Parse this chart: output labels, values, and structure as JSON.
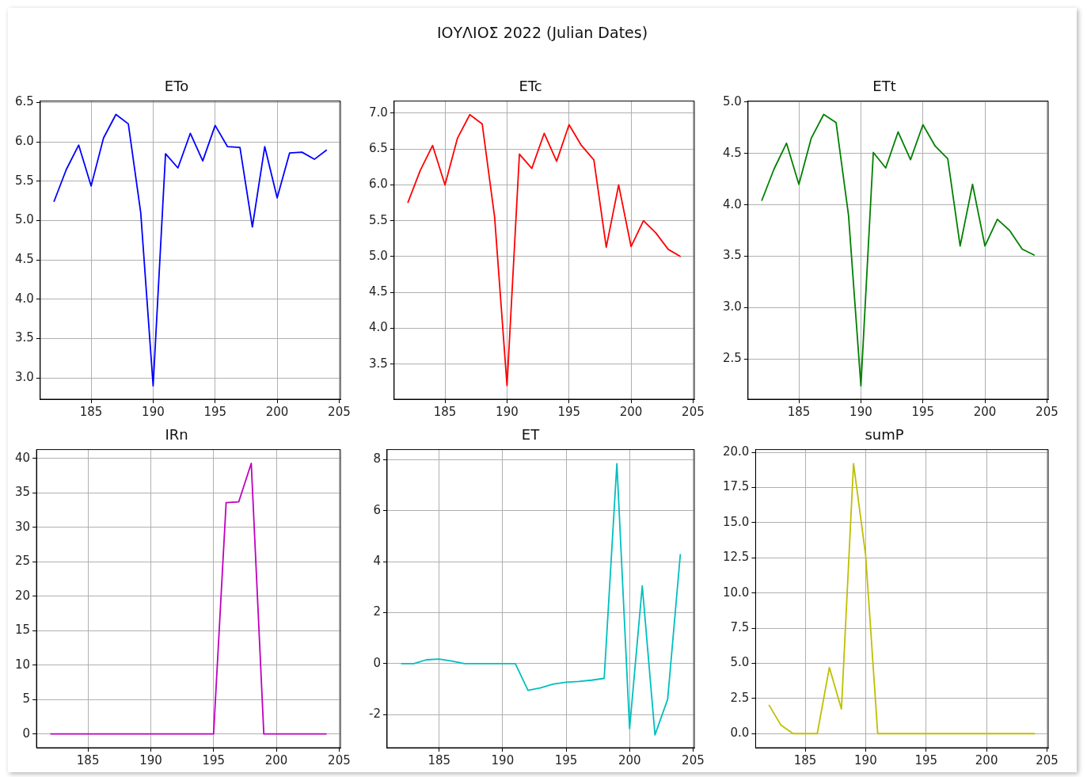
{
  "chart_data": [
    {
      "type": "other",
      "title": "ΙΟΥΛΙΟΣ 2022 (Julian Dates)"
    },
    {
      "type": "line",
      "title": "ETo",
      "color": "#0000ff",
      "grid": true,
      "x": [
        182,
        183,
        184,
        185,
        186,
        187,
        188,
        189,
        190,
        191,
        192,
        193,
        194,
        195,
        196,
        197,
        198,
        199,
        200,
        201,
        202,
        203,
        204
      ],
      "values": [
        5.24,
        5.65,
        5.96,
        5.44,
        6.05,
        6.35,
        6.23,
        5.1,
        2.9,
        5.85,
        5.67,
        6.11,
        5.76,
        6.21,
        5.94,
        5.93,
        4.92,
        5.94,
        5.29,
        5.86,
        5.87,
        5.78,
        5.9
      ],
      "xlim": [
        180.9,
        205.1
      ],
      "xticks": [
        185,
        190,
        195,
        200,
        205
      ],
      "ylim": [
        2.73,
        6.52
      ],
      "yticks": [
        {
          "value": 3,
          "label": "3.0"
        },
        3.5,
        {
          "value": 4,
          "label": "4.0"
        },
        4.5,
        {
          "value": 5,
          "label": "5.0"
        },
        5.5,
        {
          "value": 6,
          "label": "6.0"
        },
        6.5
      ]
    },
    {
      "type": "line",
      "title": "ETc",
      "color": "#ff0000",
      "grid": true,
      "x": [
        182,
        183,
        184,
        185,
        186,
        187,
        188,
        189,
        190,
        191,
        192,
        193,
        194,
        195,
        196,
        197,
        198,
        199,
        200,
        201,
        202,
        203,
        204
      ],
      "values": [
        5.75,
        6.2,
        6.55,
        6.0,
        6.65,
        6.98,
        6.85,
        5.55,
        3.2,
        6.43,
        6.23,
        6.72,
        6.33,
        6.84,
        6.55,
        6.35,
        5.13,
        6.0,
        5.14,
        5.5,
        5.33,
        5.1,
        5.0
      ],
      "xlim": [
        180.9,
        205.1
      ],
      "xticks": [
        185,
        190,
        195,
        200,
        205
      ],
      "ylim": [
        3.01,
        7.17
      ],
      "yticks": [
        3.5,
        {
          "value": 4,
          "label": "4.0"
        },
        4.5,
        {
          "value": 5,
          "label": "5.0"
        },
        5.5,
        {
          "value": 6,
          "label": "6.0"
        },
        6.5,
        {
          "value": 7,
          "label": "7.0"
        }
      ]
    },
    {
      "type": "line",
      "title": "ETt",
      "color": "#008000",
      "grid": true,
      "x": [
        182,
        183,
        184,
        185,
        186,
        187,
        188,
        189,
        190,
        191,
        192,
        193,
        194,
        195,
        196,
        197,
        198,
        199,
        200,
        201,
        202,
        203,
        204
      ],
      "values": [
        4.04,
        4.35,
        4.6,
        4.2,
        4.65,
        4.88,
        4.8,
        3.9,
        2.24,
        4.51,
        4.36,
        4.71,
        4.44,
        4.78,
        4.57,
        4.45,
        3.6,
        4.2,
        3.6,
        3.86,
        3.75,
        3.57,
        3.51
      ],
      "xlim": [
        180.9,
        205.1
      ],
      "xticks": [
        185,
        190,
        195,
        200,
        205
      ],
      "ylim": [
        2.11,
        5.01
      ],
      "yticks": [
        2.5,
        {
          "value": 3,
          "label": "3.0"
        },
        3.5,
        {
          "value": 4,
          "label": "4.0"
        },
        4.5,
        {
          "value": 5,
          "label": "5.0"
        }
      ]
    },
    {
      "type": "line",
      "title": "IRn",
      "color": "#bf00bf",
      "grid": true,
      "x": [
        182,
        183,
        184,
        185,
        186,
        187,
        188,
        189,
        190,
        191,
        192,
        193,
        194,
        195,
        196,
        197,
        198,
        199,
        200,
        201,
        202,
        203,
        204
      ],
      "values": [
        0,
        0,
        0,
        0,
        0,
        0,
        0,
        0,
        0,
        0,
        0,
        0,
        0,
        0,
        33.6,
        33.7,
        39.3,
        0,
        0,
        0,
        0,
        0,
        0
      ],
      "xlim": [
        180.9,
        205.1
      ],
      "xticks": [
        185,
        190,
        195,
        200,
        205
      ],
      "ylim": [
        -2,
        41.3
      ],
      "yticks": [
        0,
        5,
        10,
        15,
        20,
        25,
        30,
        35,
        40
      ]
    },
    {
      "type": "line",
      "title": "ET",
      "color": "#00bfbf",
      "grid": true,
      "x": [
        182,
        183,
        184,
        185,
        186,
        187,
        188,
        189,
        190,
        191,
        192,
        193,
        194,
        195,
        196,
        197,
        198,
        199,
        200,
        201,
        202,
        203,
        204
      ],
      "values": [
        0,
        0,
        0.15,
        0.18,
        0.1,
        0,
        0,
        0,
        0,
        0,
        -1.05,
        -0.95,
        -0.8,
        -0.73,
        -0.7,
        -0.65,
        -0.58,
        7.85,
        -2.55,
        3.05,
        -2.8,
        -1.4,
        4.3
      ],
      "xlim": [
        180.9,
        205.1
      ],
      "xticks": [
        185,
        190,
        195,
        200,
        205
      ],
      "ylim": [
        -3.3,
        8.4
      ],
      "yticks": [
        -2,
        0,
        2,
        4,
        6,
        8
      ]
    },
    {
      "type": "line",
      "title": "sumP",
      "color": "#bfbf00",
      "grid": true,
      "x": [
        182,
        183,
        184,
        185,
        186,
        187,
        188,
        189,
        190,
        191,
        192,
        193,
        194,
        195,
        196,
        197,
        198,
        199,
        200,
        201,
        202,
        203,
        204
      ],
      "values": [
        2.05,
        0.6,
        0,
        0,
        0,
        4.7,
        1.75,
        19.2,
        12.7,
        0,
        0,
        0,
        0,
        0,
        0,
        0,
        0,
        0,
        0,
        0,
        0,
        0,
        0
      ],
      "xlim": [
        180.9,
        205.1
      ],
      "xticks": [
        185,
        190,
        195,
        200,
        205
      ],
      "ylim": [
        -1,
        20.2
      ],
      "yticks": [
        {
          "value": 0,
          "label": "0.0"
        },
        2.5,
        {
          "value": 5,
          "label": "5.0"
        },
        7.5,
        {
          "value": 10,
          "label": "10.0"
        },
        12.5,
        {
          "value": 15,
          "label": "15.0"
        },
        17.5,
        {
          "value": 20,
          "label": "20.0"
        }
      ]
    }
  ]
}
